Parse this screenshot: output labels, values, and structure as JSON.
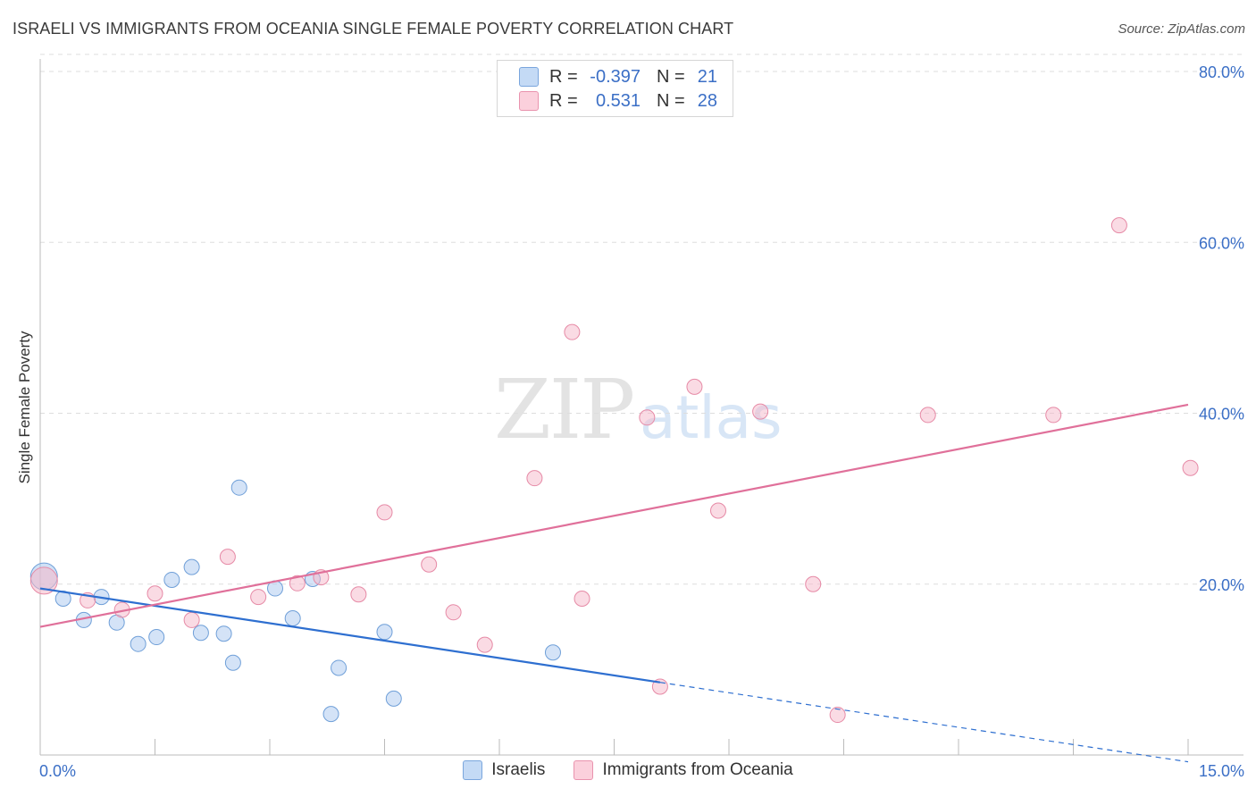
{
  "title": "ISRAELI VS IMMIGRANTS FROM OCEANIA SINGLE FEMALE POVERTY CORRELATION CHART",
  "source": "Source: ZipAtlas.com",
  "watermark": {
    "zip": "ZIP",
    "atlas": "atlas"
  },
  "legend": {
    "rows": [
      {
        "r_label": "R =",
        "r_value": "-0.397",
        "n_label": "N =",
        "n_value": "21",
        "color": "#a9c8ef"
      },
      {
        "r_label": "R =",
        "r_value": "0.531",
        "n_label": "N =",
        "n_value": "28",
        "color": "#f5b8c9"
      }
    ]
  },
  "bottom_legend": [
    {
      "label": "Israelis",
      "color": "#a9c8ef"
    },
    {
      "label": "Immigrants from Oceania",
      "color": "#f5b8c9"
    }
  ],
  "chart_data": {
    "type": "scatter",
    "title": "ISRAELI VS IMMIGRANTS FROM OCEANIA SINGLE FEMALE POVERTY CORRELATION CHART",
    "xlabel": "",
    "ylabel": "Single Female Poverty",
    "xlim": [
      0,
      15
    ],
    "ylim": [
      0,
      80
    ],
    "x_tick_labels": [
      "0.0%",
      "15.0%"
    ],
    "y_ticks": [
      20,
      40,
      60,
      80
    ],
    "y_tick_labels": [
      "20.0%",
      "40.0%",
      "60.0%",
      "80.0%"
    ],
    "grid": true,
    "series": [
      {
        "name": "Israelis",
        "color": "#a9c8ef",
        "stroke": "#6f9fd8",
        "line_color": "#2e6fd0",
        "points": [
          {
            "x": 0.05,
            "y": 20.9,
            "big": true
          },
          {
            "x": 0.3,
            "y": 18.3
          },
          {
            "x": 0.57,
            "y": 15.8
          },
          {
            "x": 0.8,
            "y": 18.5
          },
          {
            "x": 1.0,
            "y": 15.5
          },
          {
            "x": 1.28,
            "y": 13.0
          },
          {
            "x": 1.52,
            "y": 13.8
          },
          {
            "x": 1.72,
            "y": 20.5
          },
          {
            "x": 1.98,
            "y": 22.0
          },
          {
            "x": 2.1,
            "y": 14.3
          },
          {
            "x": 2.4,
            "y": 14.2
          },
          {
            "x": 2.52,
            "y": 10.8
          },
          {
            "x": 2.6,
            "y": 31.3
          },
          {
            "x": 3.07,
            "y": 19.5
          },
          {
            "x": 3.3,
            "y": 16.0
          },
          {
            "x": 3.56,
            "y": 20.6
          },
          {
            "x": 3.8,
            "y": 4.8
          },
          {
            "x": 3.9,
            "y": 10.2
          },
          {
            "x": 4.5,
            "y": 14.4
          },
          {
            "x": 4.62,
            "y": 6.6
          },
          {
            "x": 6.7,
            "y": 12.0
          }
        ],
        "trend": {
          "x0": 0,
          "y0": 19.5,
          "x1": 8.1,
          "y1": 8.5,
          "dash_x1": 15.0,
          "dash_y1": -0.8
        }
      },
      {
        "name": "Immigrants from Oceania",
        "color": "#f5b8c9",
        "stroke": "#e68aa6",
        "line_color": "#e0709a",
        "points": [
          {
            "x": 0.05,
            "y": 20.4,
            "big": true
          },
          {
            "x": 0.62,
            "y": 18.1
          },
          {
            "x": 1.07,
            "y": 17.0
          },
          {
            "x": 1.5,
            "y": 18.9
          },
          {
            "x": 1.98,
            "y": 15.8
          },
          {
            "x": 2.45,
            "y": 23.2
          },
          {
            "x": 2.85,
            "y": 18.5
          },
          {
            "x": 3.36,
            "y": 20.1
          },
          {
            "x": 3.67,
            "y": 20.8
          },
          {
            "x": 4.16,
            "y": 18.8
          },
          {
            "x": 4.5,
            "y": 28.4
          },
          {
            "x": 5.08,
            "y": 22.3
          },
          {
            "x": 5.4,
            "y": 16.7
          },
          {
            "x": 5.81,
            "y": 12.9
          },
          {
            "x": 6.46,
            "y": 32.4
          },
          {
            "x": 6.95,
            "y": 49.5
          },
          {
            "x": 7.08,
            "y": 18.3
          },
          {
            "x": 7.93,
            "y": 39.5
          },
          {
            "x": 8.1,
            "y": 8.0
          },
          {
            "x": 8.55,
            "y": 43.1
          },
          {
            "x": 8.86,
            "y": 28.6
          },
          {
            "x": 9.41,
            "y": 40.2
          },
          {
            "x": 10.1,
            "y": 20.0
          },
          {
            "x": 10.42,
            "y": 4.7
          },
          {
            "x": 11.6,
            "y": 39.8
          },
          {
            "x": 13.24,
            "y": 39.8
          },
          {
            "x": 14.1,
            "y": 62.0
          },
          {
            "x": 15.03,
            "y": 33.6
          }
        ],
        "trend": {
          "x0": 0,
          "y0": 15.0,
          "x1": 15.0,
          "y1": 41.0
        }
      }
    ]
  }
}
